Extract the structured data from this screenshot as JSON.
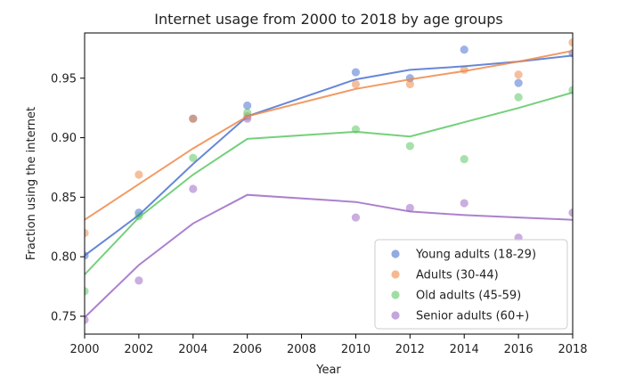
{
  "chart_data": {
    "type": "scatter",
    "title": "Internet usage from 2000 to 2018 by age groups",
    "xlabel": "Year",
    "ylabel": "Fraction using the internet",
    "xlim": [
      2000,
      2018
    ],
    "ylim": [
      0.735,
      0.988
    ],
    "xticks": [
      2000,
      2002,
      2004,
      2006,
      2008,
      2010,
      2012,
      2014,
      2016,
      2018
    ],
    "yticks": [
      0.75,
      0.8,
      0.85,
      0.9,
      0.95
    ],
    "ytick_labels": [
      "0.75",
      "0.80",
      "0.85",
      "0.90",
      "0.95"
    ],
    "grid": false,
    "legend_position": "bottom-right",
    "series": [
      {
        "name": "Young adults (18-29)",
        "color": "#4c72d0",
        "points": {
          "x": [
            2000,
            2002,
            2004,
            2006,
            2010,
            2012,
            2014,
            2016,
            2018
          ],
          "y": [
            0.801,
            0.837,
            0.916,
            0.927,
            0.955,
            0.95,
            0.974,
            0.946,
            0.971
          ]
        },
        "trend": {
          "x": [
            2000,
            2002,
            2004,
            2006,
            2010,
            2012,
            2014,
            2016,
            2018
          ],
          "y": [
            0.801,
            0.835,
            0.878,
            0.918,
            0.949,
            0.957,
            0.96,
            0.964,
            0.969
          ]
        }
      },
      {
        "name": "Adults (30-44)",
        "color": "#ee8a4a",
        "points": {
          "x": [
            2000,
            2002,
            2004,
            2006,
            2010,
            2012,
            2014,
            2016,
            2018
          ],
          "y": [
            0.82,
            0.869,
            0.916,
            0.918,
            0.945,
            0.945,
            0.957,
            0.953,
            0.98
          ]
        },
        "trend": {
          "x": [
            2000,
            2002,
            2004,
            2006,
            2010,
            2012,
            2014,
            2016,
            2018
          ],
          "y": [
            0.831,
            0.861,
            0.891,
            0.918,
            0.941,
            0.949,
            0.956,
            0.964,
            0.973
          ]
        }
      },
      {
        "name": "Old adults (45-59)",
        "color": "#5dc864",
        "points": {
          "x": [
            2000,
            2002,
            2004,
            2006,
            2010,
            2012,
            2014,
            2016,
            2018
          ],
          "y": [
            0.771,
            0.834,
            0.883,
            0.921,
            0.907,
            0.893,
            0.882,
            0.934,
            0.94
          ]
        },
        "trend": {
          "x": [
            2000,
            2002,
            2004,
            2006,
            2010,
            2012,
            2014,
            2016,
            2018
          ],
          "y": [
            0.785,
            0.833,
            0.869,
            0.899,
            0.905,
            0.901,
            0.913,
            0.925,
            0.938
          ]
        }
      },
      {
        "name": "Senior adults (60+)",
        "color": "#9e6bc4",
        "points": {
          "x": [
            2000,
            2002,
            2004,
            2006,
            2010,
            2012,
            2014,
            2016,
            2018
          ],
          "y": [
            0.747,
            0.78,
            0.857,
            0.916,
            0.833,
            0.841,
            0.845,
            0.816,
            0.837
          ]
        },
        "trend": {
          "x": [
            2000,
            2002,
            2004,
            2006,
            2010,
            2012,
            2014,
            2016,
            2018
          ],
          "y": [
            0.749,
            0.793,
            0.828,
            0.852,
            0.846,
            0.838,
            0.835,
            0.833,
            0.831
          ]
        }
      }
    ]
  }
}
